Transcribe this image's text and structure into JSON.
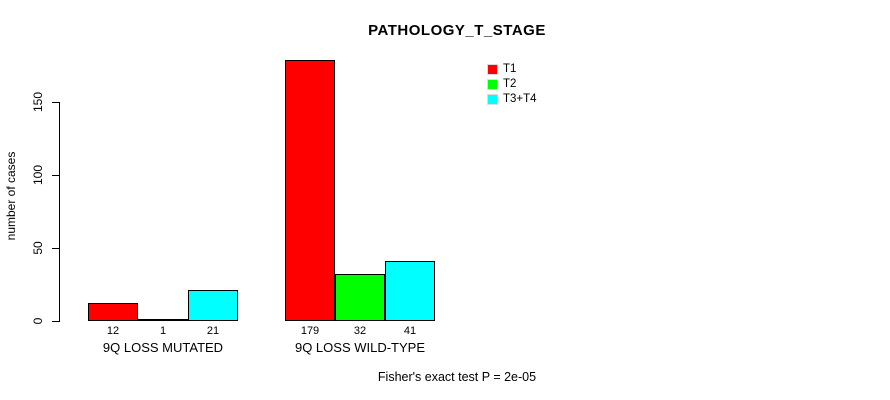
{
  "chart_data": {
    "type": "bar",
    "title": "PATHOLOGY_T_STAGE",
    "ylabel": "number of cases",
    "annotation": "Fisher's exact test P = 2e-05",
    "categories": [
      "9Q LOSS MUTATED",
      "9Q LOSS WILD-TYPE"
    ],
    "series": [
      {
        "name": "T1",
        "color": "#ff0000",
        "values": [
          12,
          179
        ]
      },
      {
        "name": "T2",
        "color": "#00ff00",
        "values": [
          1,
          32
        ]
      },
      {
        "name": "T3+T4",
        "color": "#00ffff",
        "values": [
          21,
          41
        ]
      }
    ],
    "bar_labels": [
      [
        "12",
        "1",
        "21"
      ],
      [
        "179",
        "32",
        "41"
      ]
    ],
    "ylim": [
      0,
      185
    ],
    "yticks": [
      0,
      50,
      100,
      150
    ],
    "grid": false,
    "legend_position": "inside-top-right",
    "bar_border_color": "#000000",
    "background_color": "#ffffff",
    "text_color": "#000000"
  }
}
